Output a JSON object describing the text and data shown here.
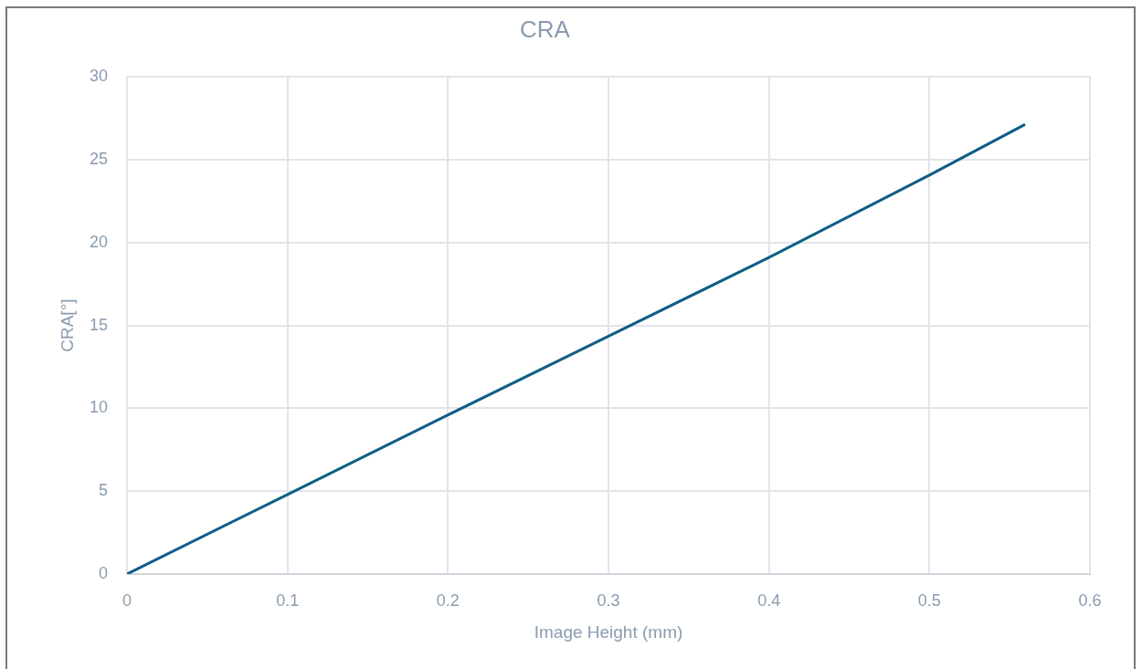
{
  "chart_data": {
    "type": "line",
    "title": "CRA",
    "xlabel": "Image Height (mm)",
    "ylabel": "CRA[°]",
    "x": [
      0,
      0.1,
      0.2,
      0.3,
      0.4,
      0.5,
      0.559
    ],
    "series": [
      {
        "color": "#0f5e86",
        "values": [
          0,
          4.8,
          9.6,
          14.35,
          19.1,
          24.07,
          27.1
        ]
      }
    ],
    "xlim": [
      0,
      0.6
    ],
    "xticks": [
      0,
      0.1,
      0.2,
      0.3,
      0.4,
      0.5,
      0.6
    ],
    "ylim": [
      0,
      30
    ],
    "yticks": [
      0,
      5,
      10,
      15,
      20,
      25,
      30
    ],
    "grid": true
  }
}
